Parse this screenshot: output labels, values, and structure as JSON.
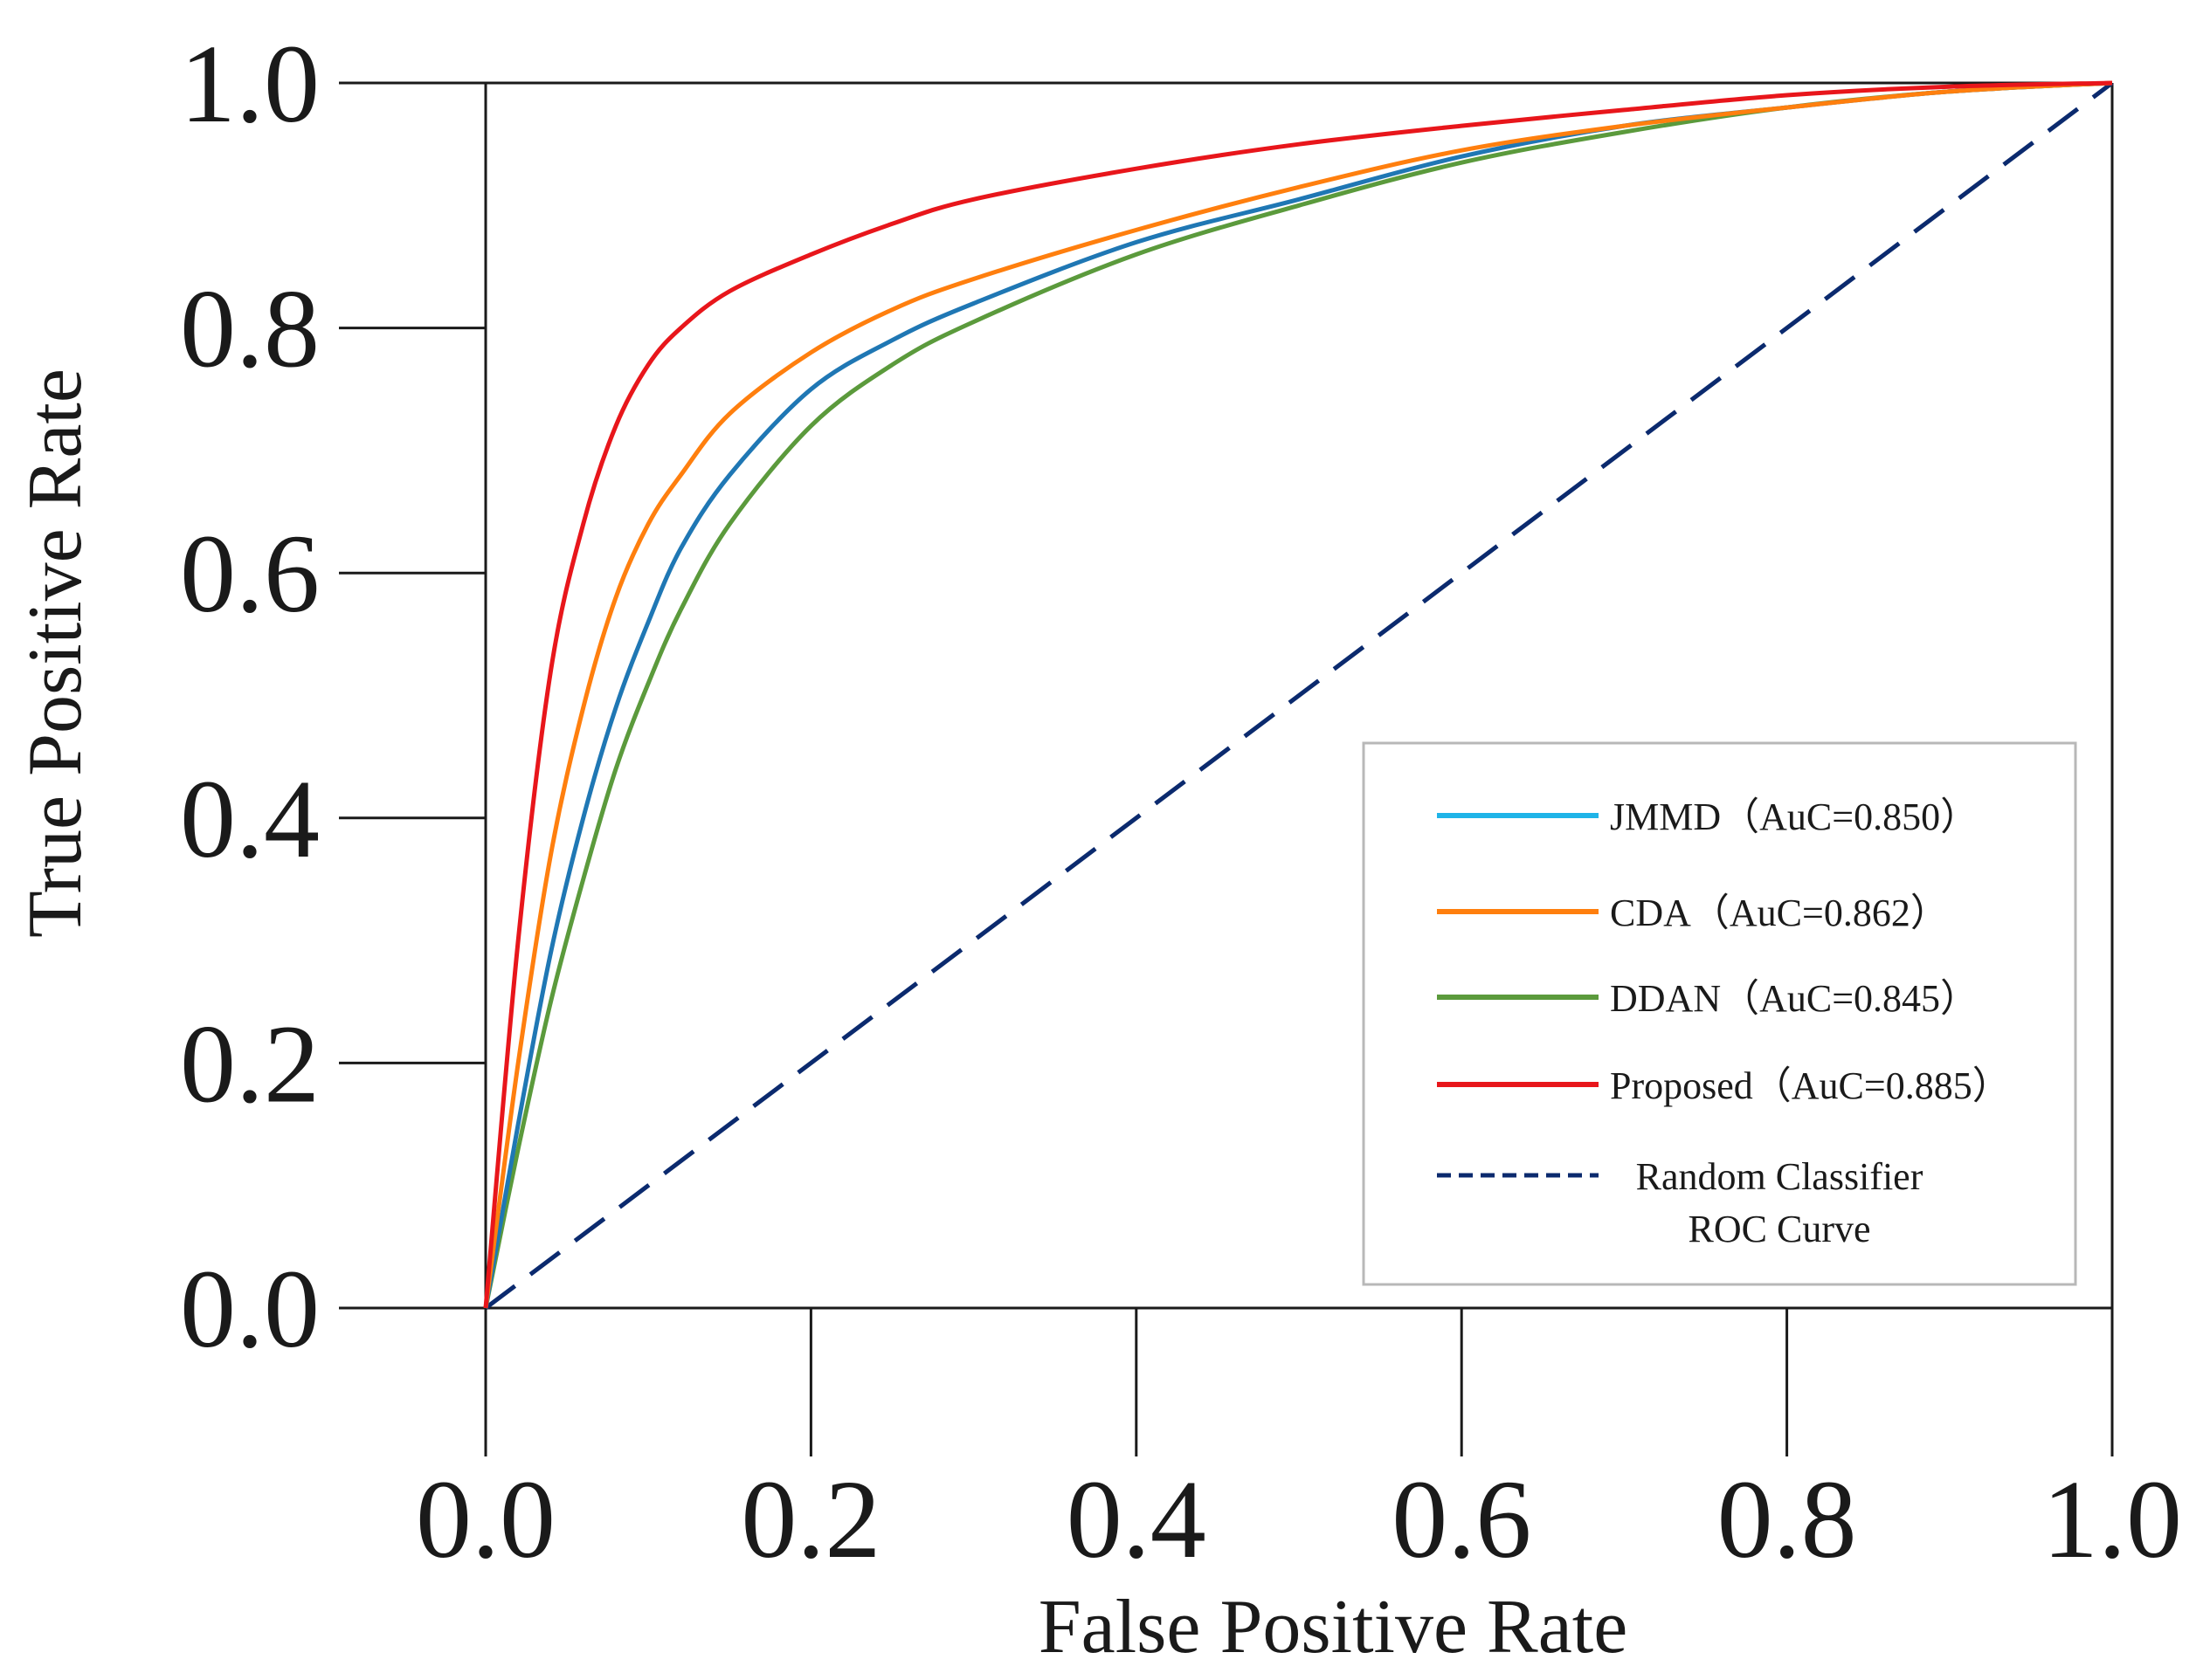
{
  "chart_data": {
    "type": "line",
    "title": "",
    "xlabel": "False Positive Rate",
    "ylabel": "True Positive Rate",
    "xlim": [
      0.0,
      1.0
    ],
    "ylim": [
      0.0,
      1.0
    ],
    "grid": false,
    "legend_position": "bottom-right",
    "x_ticks": [
      "0.0",
      "0.2",
      "0.4",
      "0.6",
      "0.8",
      "1.0"
    ],
    "y_ticks": [
      "0.0",
      "0.2",
      "0.4",
      "0.6",
      "0.8",
      "1.0"
    ],
    "series": [
      {
        "name": "JMMD",
        "legend_label": "JMMD（AuC=0.850）",
        "auc": 0.85,
        "color": "#1f77b4",
        "legend_color": "#1fb4e8",
        "style": "solid",
        "x": [
          0,
          0.02,
          0.04,
          0.06,
          0.08,
          0.1,
          0.12,
          0.15,
          0.2,
          0.25,
          0.3,
          0.4,
          0.5,
          0.6,
          0.7,
          0.8,
          0.9,
          1.0
        ],
        "y": [
          0,
          0.15,
          0.29,
          0.4,
          0.49,
          0.56,
          0.62,
          0.68,
          0.75,
          0.79,
          0.82,
          0.87,
          0.905,
          0.94,
          0.965,
          0.98,
          0.993,
          1.0
        ]
      },
      {
        "name": "CDA",
        "legend_label": "CDA（AuC=0.862）",
        "auc": 0.862,
        "color": "#ff7f0e",
        "legend_color": "#ff7f0e",
        "style": "solid",
        "x": [
          0,
          0.02,
          0.04,
          0.06,
          0.08,
          0.1,
          0.12,
          0.15,
          0.2,
          0.25,
          0.3,
          0.4,
          0.5,
          0.6,
          0.7,
          0.8,
          0.9,
          1.0
        ],
        "y": [
          0,
          0.2,
          0.37,
          0.49,
          0.58,
          0.64,
          0.68,
          0.73,
          0.78,
          0.815,
          0.84,
          0.88,
          0.915,
          0.945,
          0.965,
          0.98,
          0.993,
          1.0
        ]
      },
      {
        "name": "DDAN",
        "legend_label": "DDAN（AuC=0.845）",
        "auc": 0.845,
        "color": "#5b9a3c",
        "legend_color": "#5b9a3c",
        "style": "solid",
        "x": [
          0,
          0.02,
          0.04,
          0.06,
          0.08,
          0.1,
          0.12,
          0.15,
          0.2,
          0.25,
          0.3,
          0.4,
          0.5,
          0.6,
          0.7,
          0.8,
          0.9,
          1.0
        ],
        "y": [
          0,
          0.13,
          0.25,
          0.35,
          0.44,
          0.51,
          0.57,
          0.64,
          0.72,
          0.77,
          0.805,
          0.86,
          0.9,
          0.935,
          0.96,
          0.98,
          0.993,
          1.0
        ]
      },
      {
        "name": "Proposed",
        "legend_label": "Proposed（AuC=0.885）",
        "auc": 0.885,
        "color": "#e8161b",
        "legend_color": "#e8161b",
        "style": "solid",
        "x": [
          0,
          0.02,
          0.04,
          0.06,
          0.08,
          0.1,
          0.12,
          0.15,
          0.2,
          0.25,
          0.3,
          0.4,
          0.5,
          0.6,
          0.7,
          0.8,
          0.9,
          1.0
        ],
        "y": [
          0,
          0.3,
          0.52,
          0.64,
          0.72,
          0.77,
          0.8,
          0.83,
          0.86,
          0.885,
          0.905,
          0.93,
          0.95,
          0.965,
          0.978,
          0.99,
          0.997,
          1.0
        ]
      },
      {
        "name": "Random Classifier ROC Curve",
        "legend_label": [
          "Random Classifier",
          "ROC Curve"
        ],
        "color": "#0b2a6e",
        "legend_color": "#0b2a6e",
        "style": "dashed",
        "x": [
          0,
          1.0
        ],
        "y": [
          0,
          1.0
        ]
      }
    ]
  }
}
